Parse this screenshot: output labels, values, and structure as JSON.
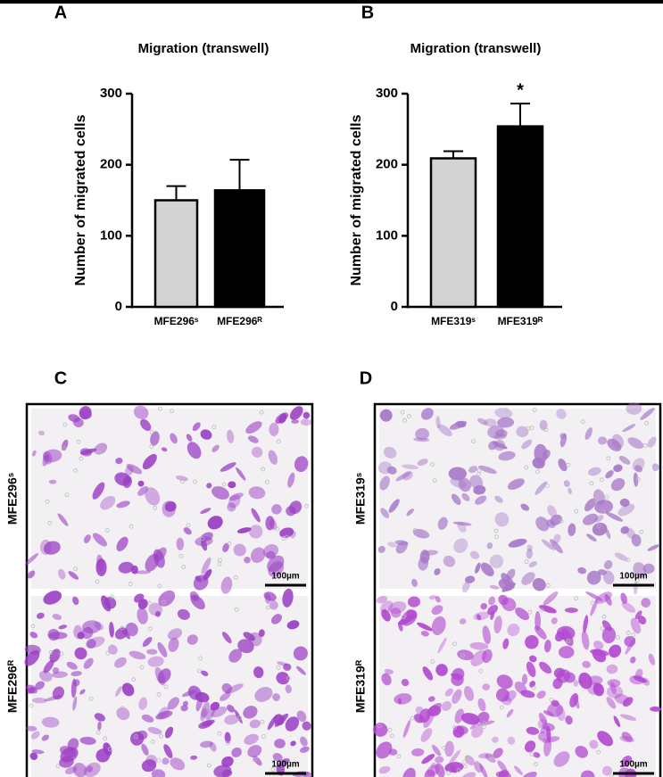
{
  "chart_data": [
    {
      "type": "bar",
      "panel": "A",
      "title": "Migration (transwell)",
      "ylabel": "Number of migrated cells",
      "categories": [
        "MFE296ˢ",
        "MFE296ᴿ"
      ],
      "values": [
        150,
        164
      ],
      "errors": [
        20,
        43
      ],
      "colors": [
        "#d3d3d3",
        "#000000"
      ],
      "ylim": [
        0,
        300
      ],
      "yticks": [
        0,
        100,
        200,
        300
      ]
    },
    {
      "type": "bar",
      "panel": "B",
      "title": "Migration (transwell)",
      "ylabel": "Number of migrated cells",
      "categories": [
        "MFE319ˢ",
        "MFE319ᴿ"
      ],
      "values": [
        209,
        254
      ],
      "errors": [
        10,
        32
      ],
      "colors": [
        "#d3d3d3",
        "#000000"
      ],
      "ylim": [
        0,
        300
      ],
      "yticks": [
        0,
        100,
        200,
        300
      ],
      "annotations": [
        {
          "text": "*",
          "x": "MFE319ᴿ"
        }
      ]
    }
  ],
  "micrographs": [
    {
      "panel": "C",
      "rows": [
        {
          "label": "MFE296ˢ",
          "scale_bar": "100µm"
        },
        {
          "label": "MFE296ᴿ",
          "scale_bar": "100µm"
        }
      ]
    },
    {
      "panel": "D",
      "rows": [
        {
          "label": "MFE319ˢ",
          "scale_bar": "100µm"
        },
        {
          "label": "MFE319ᴿ",
          "scale_bar": "100µm"
        }
      ]
    }
  ]
}
